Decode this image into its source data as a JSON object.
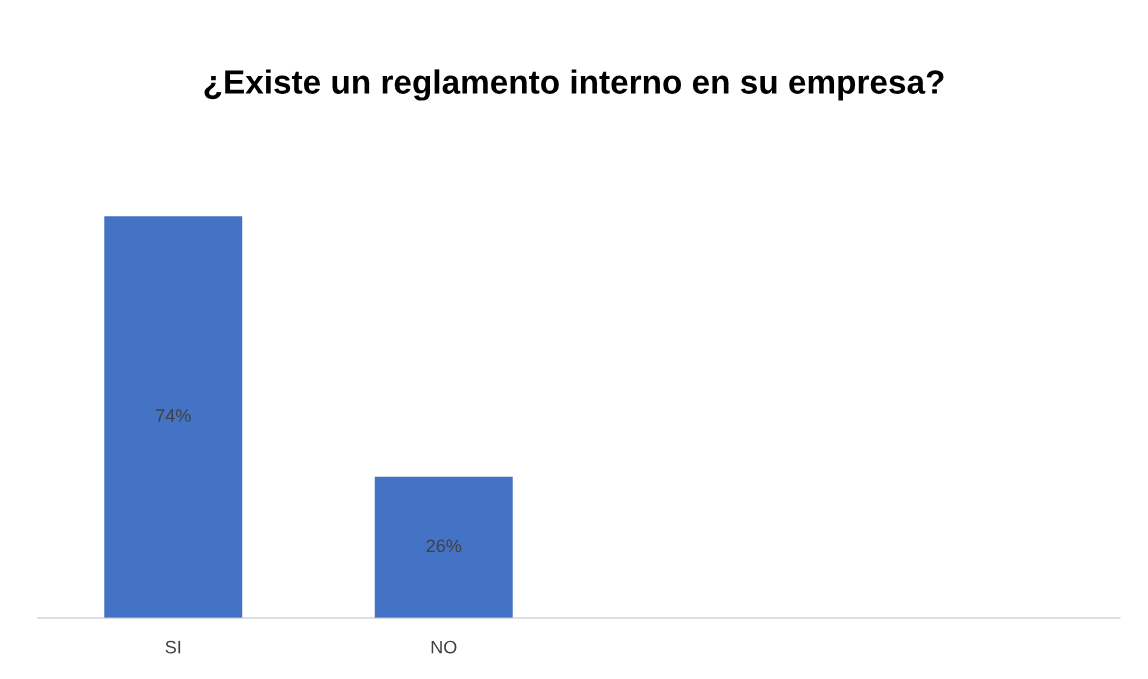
{
  "chart_data": {
    "type": "bar",
    "title": "¿Existe un reglamento interno en su empresa?",
    "categories": [
      "SI",
      "NO",
      null,
      null
    ],
    "values": [
      74,
      26,
      null,
      null
    ],
    "value_labels": [
      "74%",
      "26%",
      null,
      null
    ],
    "color": "#4472c4",
    "grid": false,
    "legend": false
  }
}
